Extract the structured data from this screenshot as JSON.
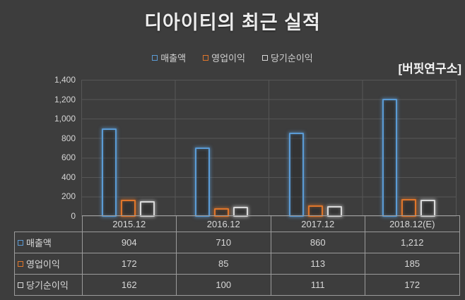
{
  "header": {
    "title": "디아이티의 최근 실적",
    "watermark": "[버핏연구소]"
  },
  "chart_data": {
    "type": "bar",
    "title": "디아이티의 최근 실적",
    "categories": [
      "2015.12",
      "2016.12",
      "2017.12",
      "2018.12(E)"
    ],
    "series": [
      {
        "key": "revenue",
        "name": "매출액",
        "color": "#5b9bd5",
        "values": [
          904,
          710,
          860,
          1212
        ]
      },
      {
        "key": "operating-profit",
        "name": "영업이익",
        "color": "#e0762b",
        "values": [
          172,
          85,
          113,
          185
        ]
      },
      {
        "key": "net-income",
        "name": "당기순이익",
        "color": "#d9d9d9",
        "values": [
          162,
          100,
          111,
          172
        ]
      }
    ],
    "ylim": [
      0,
      1400
    ],
    "ytick_step": 200,
    "yticks": [
      "0",
      "200",
      "400",
      "600",
      "800",
      "1,000",
      "1,200",
      "1,400"
    ],
    "grid": true,
    "legend_position": "top",
    "annotation": "[버핏연구소]"
  },
  "table": {
    "values": [
      [
        "904",
        "710",
        "860",
        "1,212"
      ],
      [
        "172",
        "85",
        "113",
        "185"
      ],
      [
        "162",
        "100",
        "111",
        "172"
      ]
    ]
  }
}
